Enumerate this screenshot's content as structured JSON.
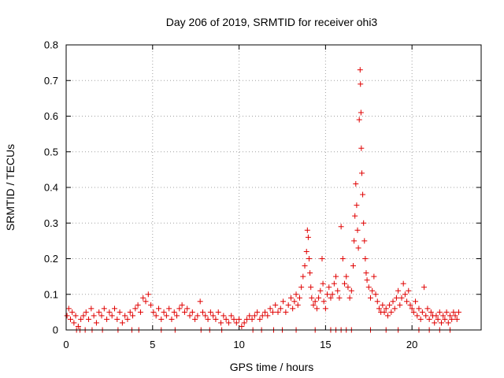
{
  "chart_data": {
    "type": "scatter",
    "title": "Day 206 of 2019, SRMTID for receiver ohi3",
    "xlabel": "GPS time / hours",
    "ylabel": "SRMTID / TECUs",
    "xlim": [
      0,
      24
    ],
    "ylim": [
      0,
      0.8
    ],
    "xticks": [
      0,
      5,
      10,
      15,
      20
    ],
    "xtick_labels": [
      "0",
      "5",
      "10",
      "15",
      "20"
    ],
    "yticks": [
      0,
      0.1,
      0.2,
      0.3,
      0.4,
      0.5,
      0.6,
      0.7,
      0.8
    ],
    "ytick_labels": [
      "0",
      "0.1",
      "0.2",
      "0.3",
      "0.4",
      "0.5",
      "0.6",
      "0.7",
      "0.8"
    ],
    "grid": true,
    "marker": "plus",
    "color": "#e00000",
    "series": [
      {
        "name": "SRMTID",
        "points": [
          [
            0.05,
            0.04
          ],
          [
            0.15,
            0.06
          ],
          [
            0.25,
            0.03
          ],
          [
            0.35,
            0.05
          ],
          [
            0.45,
            0.02
          ],
          [
            0.55,
            0.04
          ],
          [
            0.7,
            0.01
          ],
          [
            0.85,
            0.03
          ],
          [
            1.0,
            0.04
          ],
          [
            1.15,
            0.05
          ],
          [
            1.3,
            0.03
          ],
          [
            1.45,
            0.06
          ],
          [
            1.6,
            0.04
          ],
          [
            1.75,
            0.02
          ],
          [
            1.9,
            0.05
          ],
          [
            2.05,
            0.04
          ],
          [
            2.2,
            0.06
          ],
          [
            2.35,
            0.03
          ],
          [
            2.5,
            0.05
          ],
          [
            2.65,
            0.04
          ],
          [
            2.8,
            0.06
          ],
          [
            2.95,
            0.03
          ],
          [
            3.1,
            0.05
          ],
          [
            3.25,
            0.02
          ],
          [
            3.4,
            0.04
          ],
          [
            3.55,
            0.03
          ],
          [
            3.7,
            0.05
          ],
          [
            3.85,
            0.04
          ],
          [
            4.0,
            0.06
          ],
          [
            4.15,
            0.07
          ],
          [
            4.3,
            0.05
          ],
          [
            4.45,
            0.09
          ],
          [
            4.6,
            0.08
          ],
          [
            4.75,
            0.1
          ],
          [
            4.9,
            0.07
          ],
          [
            5.05,
            0.05
          ],
          [
            5.2,
            0.04
          ],
          [
            5.35,
            0.06
          ],
          [
            5.5,
            0.03
          ],
          [
            5.65,
            0.05
          ],
          [
            5.8,
            0.04
          ],
          [
            5.95,
            0.06
          ],
          [
            6.1,
            0.03
          ],
          [
            6.25,
            0.05
          ],
          [
            6.4,
            0.04
          ],
          [
            6.55,
            0.06
          ],
          [
            6.7,
            0.07
          ],
          [
            6.85,
            0.05
          ],
          [
            7.0,
            0.06
          ],
          [
            7.15,
            0.04
          ],
          [
            7.3,
            0.05
          ],
          [
            7.45,
            0.03
          ],
          [
            7.6,
            0.04
          ],
          [
            7.75,
            0.08
          ],
          [
            7.9,
            0.05
          ],
          [
            8.05,
            0.04
          ],
          [
            8.2,
            0.03
          ],
          [
            8.35,
            0.05
          ],
          [
            8.5,
            0.04
          ],
          [
            8.65,
            0.03
          ],
          [
            8.8,
            0.05
          ],
          [
            8.95,
            0.02
          ],
          [
            9.1,
            0.04
          ],
          [
            9.25,
            0.03
          ],
          [
            9.4,
            0.02
          ],
          [
            9.55,
            0.04
          ],
          [
            9.7,
            0.03
          ],
          [
            9.85,
            0.02
          ],
          [
            10.0,
            0.03
          ],
          [
            10.15,
            0.01
          ],
          [
            10.3,
            0.02
          ],
          [
            10.45,
            0.03
          ],
          [
            10.6,
            0.04
          ],
          [
            10.75,
            0.03
          ],
          [
            10.9,
            0.04
          ],
          [
            11.05,
            0.05
          ],
          [
            11.2,
            0.03
          ],
          [
            11.35,
            0.04
          ],
          [
            11.5,
            0.05
          ],
          [
            11.65,
            0.04
          ],
          [
            11.8,
            0.06
          ],
          [
            11.95,
            0.05
          ],
          [
            12.1,
            0.07
          ],
          [
            12.25,
            0.05
          ],
          [
            12.4,
            0.06
          ],
          [
            12.55,
            0.08
          ],
          [
            12.7,
            0.05
          ],
          [
            12.85,
            0.07
          ],
          [
            13.0,
            0.09
          ],
          [
            13.1,
            0.06
          ],
          [
            13.2,
            0.08
          ],
          [
            13.3,
            0.1
          ],
          [
            13.4,
            0.07
          ],
          [
            13.5,
            0.09
          ],
          [
            13.6,
            0.12
          ],
          [
            13.7,
            0.15
          ],
          [
            13.8,
            0.18
          ],
          [
            13.9,
            0.22
          ],
          [
            13.95,
            0.28
          ],
          [
            14.0,
            0.26
          ],
          [
            14.05,
            0.2
          ],
          [
            14.1,
            0.16
          ],
          [
            14.15,
            0.12
          ],
          [
            14.2,
            0.09
          ],
          [
            14.3,
            0.07
          ],
          [
            14.4,
            0.08
          ],
          [
            14.5,
            0.06
          ],
          [
            14.6,
            0.09
          ],
          [
            14.7,
            0.11
          ],
          [
            14.8,
            0.2
          ],
          [
            14.85,
            0.13
          ],
          [
            14.9,
            0.08
          ],
          [
            15.0,
            0.06
          ],
          [
            15.1,
            0.1
          ],
          [
            15.2,
            0.12
          ],
          [
            15.3,
            0.09
          ],
          [
            15.4,
            0.1
          ],
          [
            15.5,
            0.13
          ],
          [
            15.6,
            0.15
          ],
          [
            15.7,
            0.11
          ],
          [
            15.8,
            0.09
          ],
          [
            15.9,
            0.29
          ],
          [
            16.0,
            0.2
          ],
          [
            16.1,
            0.13
          ],
          [
            16.2,
            0.15
          ],
          [
            16.3,
            0.12
          ],
          [
            16.4,
            0.09
          ],
          [
            16.5,
            0.11
          ],
          [
            16.6,
            0.18
          ],
          [
            16.65,
            0.25
          ],
          [
            16.7,
            0.32
          ],
          [
            16.75,
            0.41
          ],
          [
            16.8,
            0.35
          ],
          [
            16.85,
            0.28
          ],
          [
            16.9,
            0.23
          ],
          [
            16.95,
            0.59
          ],
          [
            17.0,
            0.73
          ],
          [
            17.02,
            0.69
          ],
          [
            17.05,
            0.61
          ],
          [
            17.07,
            0.51
          ],
          [
            17.1,
            0.44
          ],
          [
            17.15,
            0.38
          ],
          [
            17.2,
            0.3
          ],
          [
            17.25,
            0.25
          ],
          [
            17.3,
            0.2
          ],
          [
            17.35,
            0.16
          ],
          [
            17.4,
            0.14
          ],
          [
            17.5,
            0.12
          ],
          [
            17.6,
            0.09
          ],
          [
            17.7,
            0.11
          ],
          [
            17.8,
            0.15
          ],
          [
            17.9,
            0.1
          ],
          [
            18.0,
            0.08
          ],
          [
            18.1,
            0.06
          ],
          [
            18.2,
            0.05
          ],
          [
            18.3,
            0.07
          ],
          [
            18.4,
            0.05
          ],
          [
            18.5,
            0.06
          ],
          [
            18.6,
            0.04
          ],
          [
            18.7,
            0.07
          ],
          [
            18.8,
            0.05
          ],
          [
            18.9,
            0.08
          ],
          [
            19.0,
            0.06
          ],
          [
            19.1,
            0.09
          ],
          [
            19.2,
            0.11
          ],
          [
            19.3,
            0.07
          ],
          [
            19.4,
            0.09
          ],
          [
            19.5,
            0.13
          ],
          [
            19.6,
            0.1
          ],
          [
            19.7,
            0.08
          ],
          [
            19.8,
            0.11
          ],
          [
            19.9,
            0.07
          ],
          [
            20.0,
            0.06
          ],
          [
            20.1,
            0.05
          ],
          [
            20.2,
            0.08
          ],
          [
            20.3,
            0.04
          ],
          [
            20.4,
            0.06
          ],
          [
            20.5,
            0.03
          ],
          [
            20.6,
            0.05
          ],
          [
            20.7,
            0.12
          ],
          [
            20.8,
            0.04
          ],
          [
            20.9,
            0.06
          ],
          [
            21.0,
            0.03
          ],
          [
            21.1,
            0.05
          ],
          [
            21.2,
            0.04
          ],
          [
            21.3,
            0.02
          ],
          [
            21.4,
            0.04
          ],
          [
            21.5,
            0.03
          ],
          [
            21.6,
            0.05
          ],
          [
            21.7,
            0.02
          ],
          [
            21.8,
            0.04
          ],
          [
            21.9,
            0.03
          ],
          [
            22.0,
            0.05
          ],
          [
            22.1,
            0.02
          ],
          [
            22.2,
            0.04
          ],
          [
            22.3,
            0.03
          ],
          [
            22.4,
            0.05
          ],
          [
            22.5,
            0.04
          ],
          [
            22.6,
            0.03
          ],
          [
            22.7,
            0.05
          ],
          [
            0.6,
            0.0
          ],
          [
            0.8,
            0.0
          ],
          [
            1.1,
            0.0
          ],
          [
            1.5,
            0.0
          ],
          [
            2.1,
            0.0
          ],
          [
            3.0,
            0.0
          ],
          [
            3.8,
            0.0
          ],
          [
            4.2,
            0.0
          ],
          [
            5.5,
            0.0
          ],
          [
            6.3,
            0.0
          ],
          [
            7.8,
            0.0
          ],
          [
            8.3,
            0.0
          ],
          [
            9.0,
            0.0
          ],
          [
            10.8,
            0.0
          ],
          [
            11.3,
            0.0
          ],
          [
            12.0,
            0.0
          ],
          [
            12.5,
            0.0
          ],
          [
            13.3,
            0.0
          ],
          [
            14.4,
            0.0
          ],
          [
            15.3,
            0.0
          ],
          [
            15.6,
            0.0
          ],
          [
            15.9,
            0.0
          ],
          [
            16.2,
            0.0
          ],
          [
            16.5,
            0.0
          ],
          [
            17.6,
            0.0
          ],
          [
            18.5,
            0.0
          ],
          [
            19.2,
            0.0
          ],
          [
            20.4,
            0.0
          ],
          [
            21.0,
            0.0
          ],
          [
            21.6,
            0.0
          ],
          [
            22.2,
            0.0
          ]
        ]
      }
    ]
  }
}
